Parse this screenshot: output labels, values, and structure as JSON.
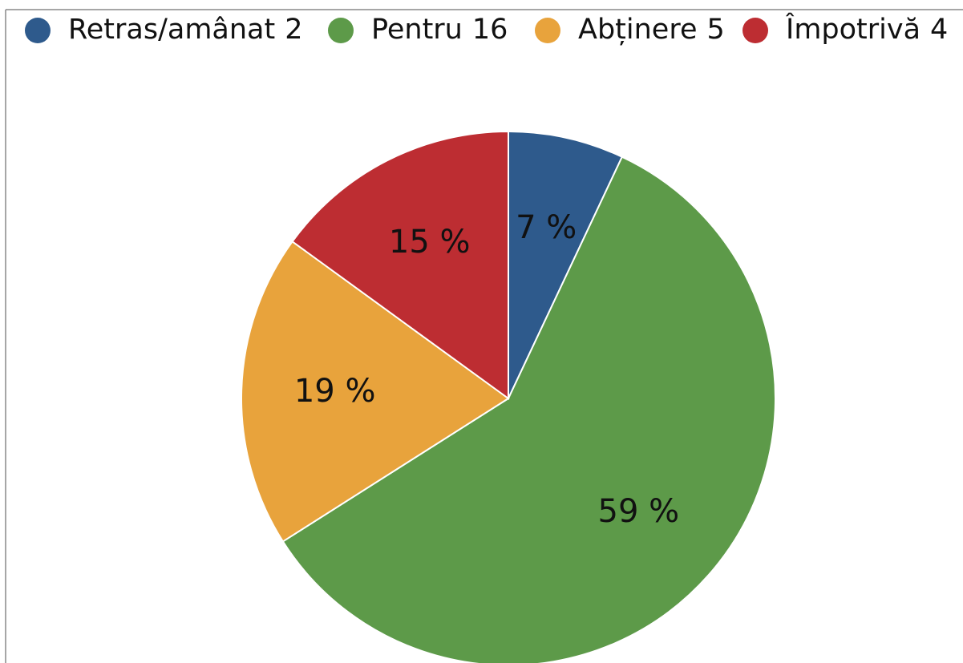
{
  "chart_data": {
    "type": "pie",
    "categories": [
      "Retras/amânat",
      "Pentru",
      "Abținere",
      "Împotrivă"
    ],
    "counts": [
      2,
      16,
      5,
      4
    ],
    "values": [
      7,
      59,
      19,
      15
    ],
    "value_labels": [
      "7 %",
      "59 %",
      "19 %",
      "15 %"
    ],
    "colors": [
      "#2e5a8c",
      "#5d9a49",
      "#e8a33c",
      "#bd2d32"
    ]
  }
}
